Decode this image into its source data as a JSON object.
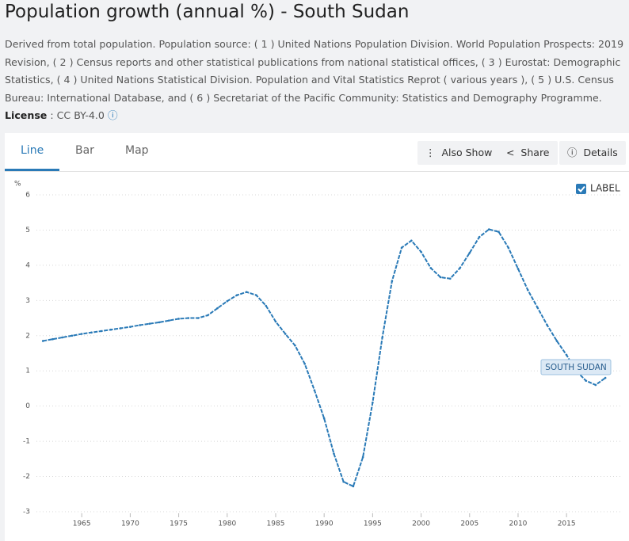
{
  "header": {
    "title": "Population growth (annual %) - South Sudan",
    "description": "Derived from total population. Population source: ( 1 ) United Nations Population Division. World Population Prospects: 2019 Revision, ( 2 ) Census reports and other statistical publications from national statistical offices, ( 3 ) Eurostat: Demographic Statistics, ( 4 ) United Nations Statistical Division. Population and Vital Statistics Reprot ( various years ), ( 5 ) U.S. Census Bureau: International Database, and ( 6 ) Secretariat of the Pacific Community: Statistics and Demography Programme.",
    "license_label": "License",
    "license_value": ": CC BY-4.0"
  },
  "tabs": [
    "Line",
    "Bar",
    "Map"
  ],
  "buttons": [
    "Also Show",
    "Share",
    "Details"
  ],
  "label_toggle": "LABEL",
  "chart_data": {
    "type": "line",
    "y_label": "%",
    "x": [
      1961,
      1962,
      1963,
      1964,
      1965,
      1966,
      1967,
      1968,
      1969,
      1970,
      1971,
      1972,
      1973,
      1974,
      1975,
      1976,
      1977,
      1978,
      1979,
      1980,
      1981,
      1982,
      1983,
      1984,
      1985,
      1986,
      1987,
      1988,
      1989,
      1990,
      1991,
      1992,
      1993,
      1994,
      1995,
      1996,
      1997,
      1998,
      1999,
      2000,
      2001,
      2002,
      2003,
      2004,
      2005,
      2006,
      2007,
      2008,
      2009,
      2010,
      2011,
      2012,
      2013,
      2014,
      2015,
      2016,
      2017,
      2018,
      2019
    ],
    "series": [
      {
        "name": "SOUTH SUDAN",
        "color": "#2a7ab7",
        "values": [
          1.85,
          1.9,
          1.95,
          2.0,
          2.05,
          2.09,
          2.13,
          2.17,
          2.21,
          2.25,
          2.3,
          2.34,
          2.38,
          2.43,
          2.48,
          2.5,
          2.5,
          2.58,
          2.78,
          2.98,
          3.15,
          3.24,
          3.15,
          2.85,
          2.4,
          2.05,
          1.72,
          1.2,
          0.45,
          -0.35,
          -1.35,
          -2.15,
          -2.28,
          -1.45,
          0.1,
          1.95,
          3.55,
          4.5,
          4.7,
          4.38,
          3.92,
          3.66,
          3.62,
          3.92,
          4.35,
          4.8,
          5.02,
          4.95,
          4.5,
          3.9,
          3.3,
          2.8,
          2.3,
          1.85,
          1.45,
          1.0,
          0.72,
          0.6,
          0.8
        ]
      }
    ],
    "xlim": [
      1960,
      2021
    ],
    "xticks": [
      1965,
      1970,
      1975,
      1980,
      1985,
      1990,
      1995,
      2000,
      2005,
      2010,
      2015
    ],
    "ylim": [
      -3,
      6
    ],
    "yticks": [
      -3,
      -2,
      -1,
      0,
      1,
      2,
      3,
      4,
      5,
      6
    ],
    "grid": true
  }
}
